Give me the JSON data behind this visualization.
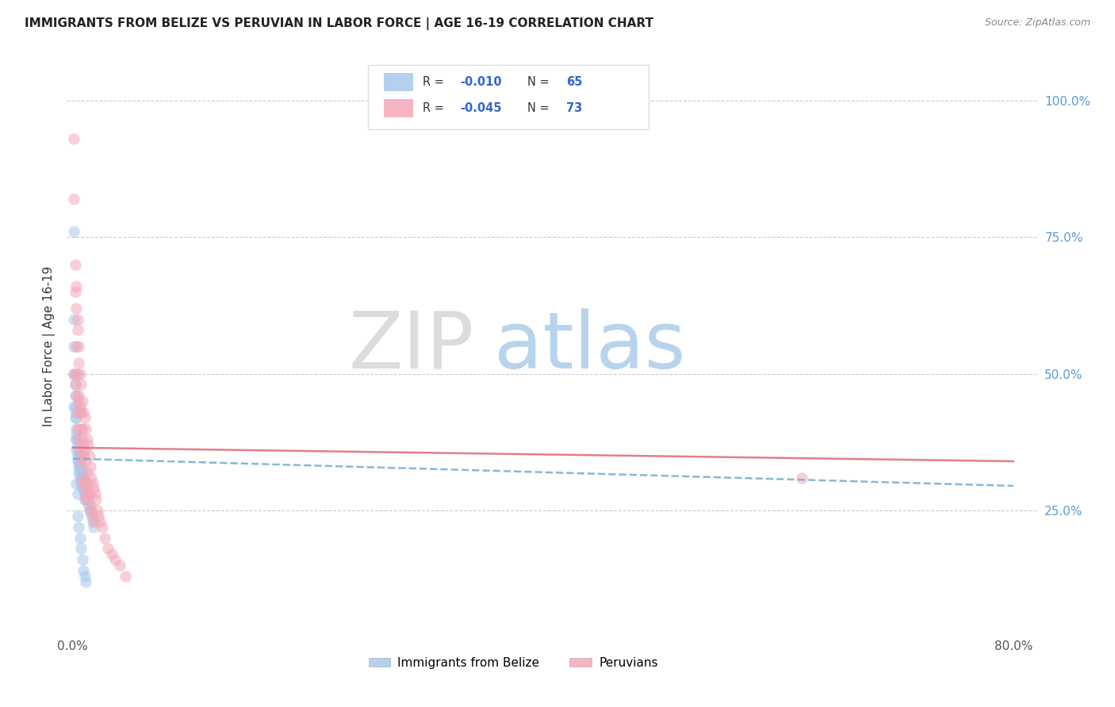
{
  "title": "IMMIGRANTS FROM BELIZE VS PERUVIAN IN LABOR FORCE | AGE 16-19 CORRELATION CHART",
  "source": "Source: ZipAtlas.com",
  "ylabel": "In Labor Force | Age 16-19",
  "xlim": [
    -0.005,
    0.82
  ],
  "ylim": [
    0.02,
    1.08
  ],
  "color_blue": "#A8C8EC",
  "color_pink": "#F4A8B8",
  "color_blue_line": "#7BAFD4",
  "color_pink_line": "#E07080",
  "watermark_zip": "ZIP",
  "watermark_atlas": "atlas",
  "belize_x": [
    0.001,
    0.001,
    0.001,
    0.002,
    0.002,
    0.002,
    0.002,
    0.003,
    0.003,
    0.003,
    0.003,
    0.003,
    0.004,
    0.004,
    0.004,
    0.004,
    0.005,
    0.005,
    0.005,
    0.005,
    0.006,
    0.006,
    0.006,
    0.006,
    0.006,
    0.007,
    0.007,
    0.007,
    0.008,
    0.008,
    0.008,
    0.008,
    0.009,
    0.009,
    0.009,
    0.01,
    0.01,
    0.01,
    0.01,
    0.011,
    0.011,
    0.012,
    0.012,
    0.013,
    0.013,
    0.014,
    0.015,
    0.016,
    0.017,
    0.018,
    0.001,
    0.001,
    0.002,
    0.002,
    0.003,
    0.003,
    0.004,
    0.004,
    0.005,
    0.006,
    0.007,
    0.008,
    0.009,
    0.01,
    0.011
  ],
  "belize_y": [
    0.6,
    0.55,
    0.5,
    0.48,
    0.46,
    0.44,
    0.42,
    0.42,
    0.4,
    0.39,
    0.38,
    0.36,
    0.37,
    0.36,
    0.35,
    0.34,
    0.35,
    0.34,
    0.33,
    0.32,
    0.34,
    0.33,
    0.32,
    0.31,
    0.3,
    0.33,
    0.32,
    0.31,
    0.32,
    0.31,
    0.3,
    0.29,
    0.31,
    0.3,
    0.29,
    0.3,
    0.29,
    0.28,
    0.27,
    0.29,
    0.28,
    0.28,
    0.27,
    0.27,
    0.26,
    0.25,
    0.25,
    0.24,
    0.23,
    0.22,
    0.76,
    0.44,
    0.5,
    0.43,
    0.38,
    0.3,
    0.28,
    0.24,
    0.22,
    0.2,
    0.18,
    0.16,
    0.14,
    0.13,
    0.12
  ],
  "peruvian_x": [
    0.001,
    0.001,
    0.002,
    0.002,
    0.003,
    0.003,
    0.003,
    0.004,
    0.004,
    0.004,
    0.004,
    0.005,
    0.005,
    0.005,
    0.006,
    0.006,
    0.006,
    0.007,
    0.007,
    0.007,
    0.008,
    0.008,
    0.008,
    0.008,
    0.009,
    0.009,
    0.009,
    0.01,
    0.01,
    0.01,
    0.01,
    0.011,
    0.011,
    0.011,
    0.012,
    0.012,
    0.013,
    0.013,
    0.014,
    0.014,
    0.015,
    0.015,
    0.016,
    0.016,
    0.017,
    0.017,
    0.018,
    0.018,
    0.019,
    0.02,
    0.021,
    0.022,
    0.023,
    0.025,
    0.027,
    0.03,
    0.033,
    0.036,
    0.04,
    0.045,
    0.001,
    0.002,
    0.003,
    0.004,
    0.005,
    0.005,
    0.006,
    0.007,
    0.008,
    0.009,
    0.01,
    0.012,
    0.62
  ],
  "peruvian_y": [
    0.93,
    0.5,
    0.65,
    0.48,
    0.62,
    0.55,
    0.46,
    0.58,
    0.5,
    0.43,
    0.4,
    0.52,
    0.46,
    0.38,
    0.5,
    0.43,
    0.36,
    0.48,
    0.4,
    0.34,
    0.45,
    0.4,
    0.35,
    0.3,
    0.43,
    0.37,
    0.31,
    0.42,
    0.36,
    0.3,
    0.27,
    0.4,
    0.34,
    0.28,
    0.38,
    0.32,
    0.37,
    0.3,
    0.35,
    0.28,
    0.33,
    0.26,
    0.31,
    0.25,
    0.3,
    0.24,
    0.29,
    0.23,
    0.28,
    0.27,
    0.25,
    0.24,
    0.23,
    0.22,
    0.2,
    0.18,
    0.17,
    0.16,
    0.15,
    0.13,
    0.82,
    0.7,
    0.66,
    0.6,
    0.55,
    0.45,
    0.44,
    0.43,
    0.38,
    0.35,
    0.3,
    0.28,
    0.31
  ],
  "belize_line_x": [
    0.0,
    0.8
  ],
  "belize_line_y": [
    0.345,
    0.295
  ],
  "peruvian_line_x": [
    0.0,
    0.8
  ],
  "peruvian_line_y": [
    0.365,
    0.34
  ]
}
